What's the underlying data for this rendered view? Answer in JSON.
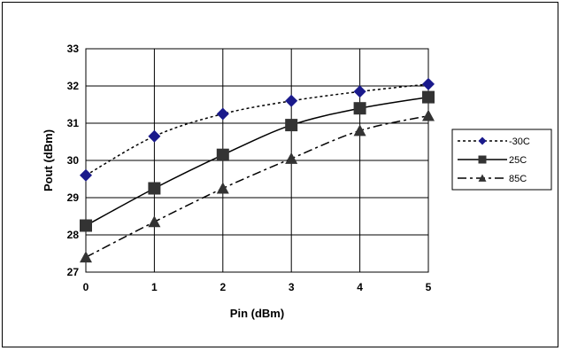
{
  "chart_data": {
    "type": "line",
    "title": "",
    "xlabel": "Pin (dBm)",
    "ylabel": "Pout (dBm)",
    "x": [
      0,
      1,
      2,
      3,
      4,
      5
    ],
    "xlim": [
      0,
      5
    ],
    "ylim": [
      27,
      33
    ],
    "x_ticks": [
      "0",
      "1",
      "2",
      "3",
      "4",
      "5"
    ],
    "y_ticks": [
      "27",
      "28",
      "29",
      "30",
      "31",
      "32",
      "33"
    ],
    "grid": true,
    "legend_position": "right",
    "series": [
      {
        "name": "-30C",
        "values": [
          29.6,
          30.65,
          31.25,
          31.6,
          31.85,
          32.05
        ],
        "marker": "diamond",
        "line_style": "dotted",
        "marker_color": "#1a1a8c"
      },
      {
        "name": "25C",
        "values": [
          28.25,
          29.25,
          30.15,
          30.95,
          31.4,
          31.7
        ],
        "marker": "square",
        "line_style": "solid",
        "marker_color": "#333333"
      },
      {
        "name": "85C",
        "values": [
          27.4,
          28.35,
          29.25,
          30.05,
          30.8,
          31.2
        ],
        "marker": "triangle",
        "line_style": "dashdot",
        "marker_color": "#333333"
      }
    ]
  }
}
